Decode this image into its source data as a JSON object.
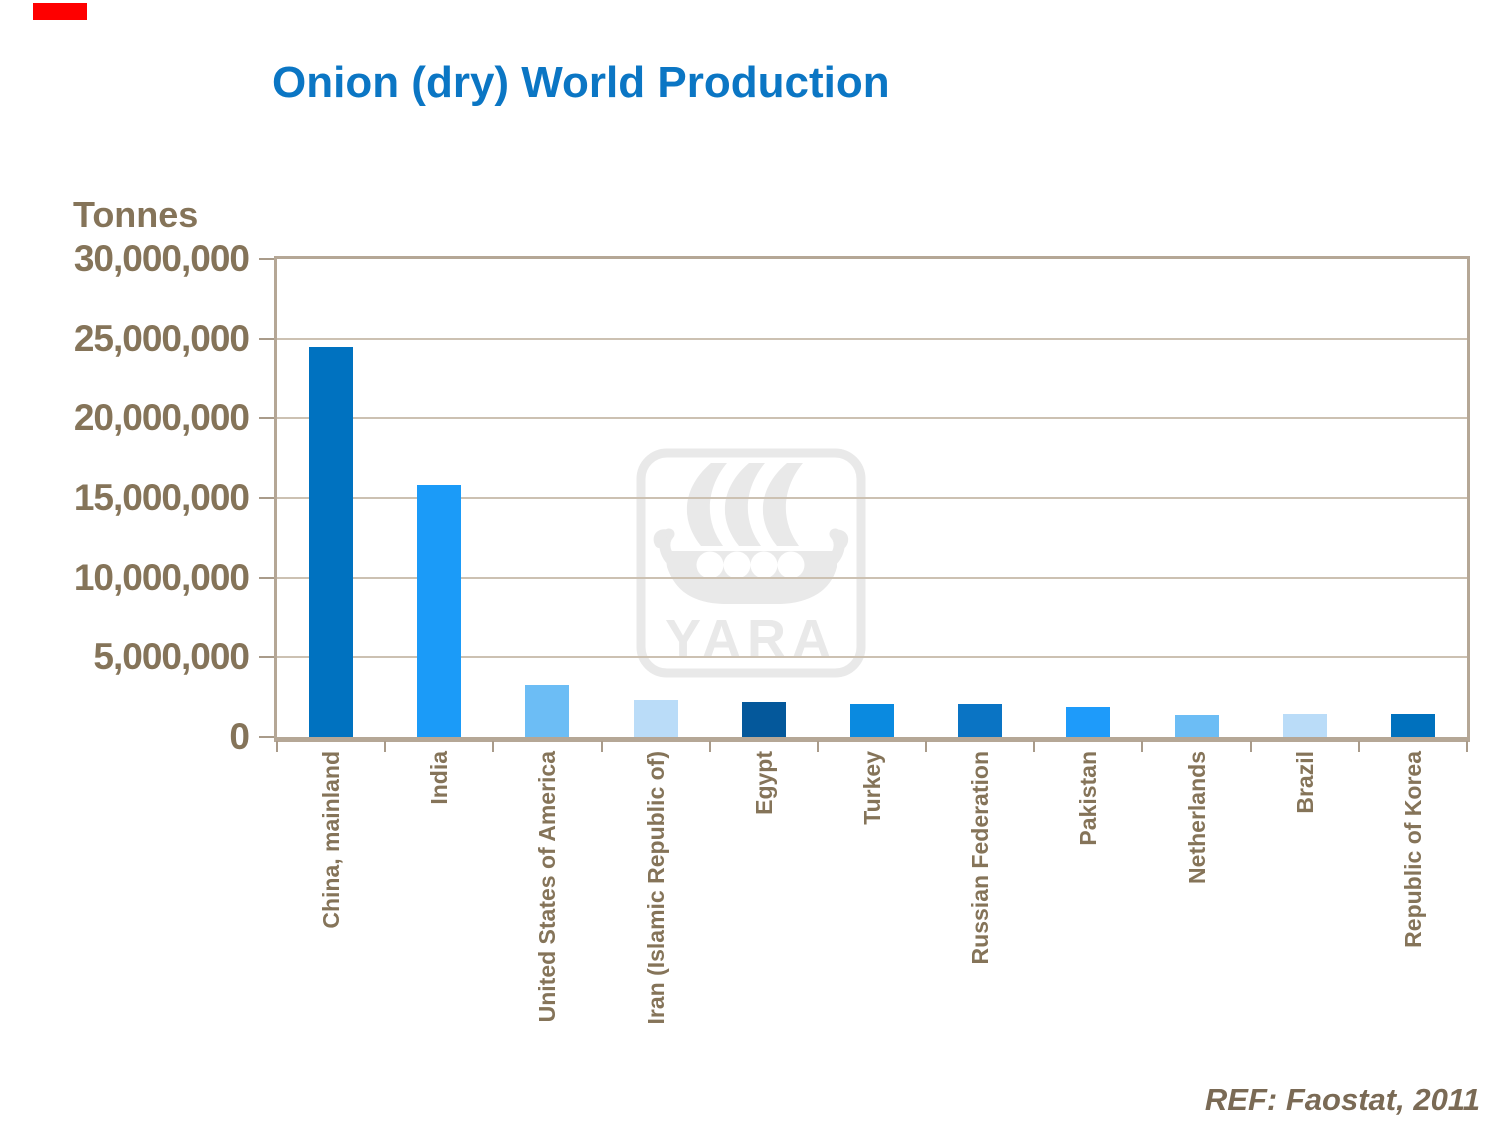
{
  "slide": {
    "title": "Onion (dry) World Production",
    "title_color": "#0B76C4",
    "units_label": "Tonnes",
    "ref_text": "REF: Faostat, 2011",
    "text_color": "#857459",
    "ref_color": "#7A6A55",
    "axis_frame_color": "#B5A796",
    "corner_marker_color": "#FE0000",
    "watermark": {
      "logo_text": "YARA",
      "color": "#E9E9E9"
    }
  },
  "chart_data": {
    "type": "bar",
    "title": "Onion (dry) World Production",
    "xlabel": "",
    "ylabel": "Tonnes",
    "ylim": [
      0,
      30000000
    ],
    "ytick_interval": 5000000,
    "yticks": [
      "30,000,000",
      "25,000,000",
      "20,000,000",
      "15,000,000",
      "10,000,000",
      "5,000,000",
      "0"
    ],
    "grid": true,
    "legend": false,
    "source": "REF: Faostat, 2011",
    "categories": [
      "China, mainland",
      "India",
      "United States of America",
      "Iran (Islamic Republic of)",
      "Egypt",
      "Turkey",
      "Russian Federation",
      "Pakistan",
      "Netherlands",
      "Brazil",
      "Republic of Korea"
    ],
    "values": [
      24500000,
      15800000,
      3250000,
      2350000,
      2200000,
      2100000,
      2100000,
      1900000,
      1400000,
      1450000,
      1450000
    ],
    "bar_colors": [
      "#0072C0",
      "#1B9BF8",
      "#6CBDF5",
      "#BADCF8",
      "#04589B",
      "#0A8AE0",
      "#0A74C4",
      "#1E9BFA",
      "#6CBDF5",
      "#BADCF8",
      "#0071BE"
    ]
  }
}
